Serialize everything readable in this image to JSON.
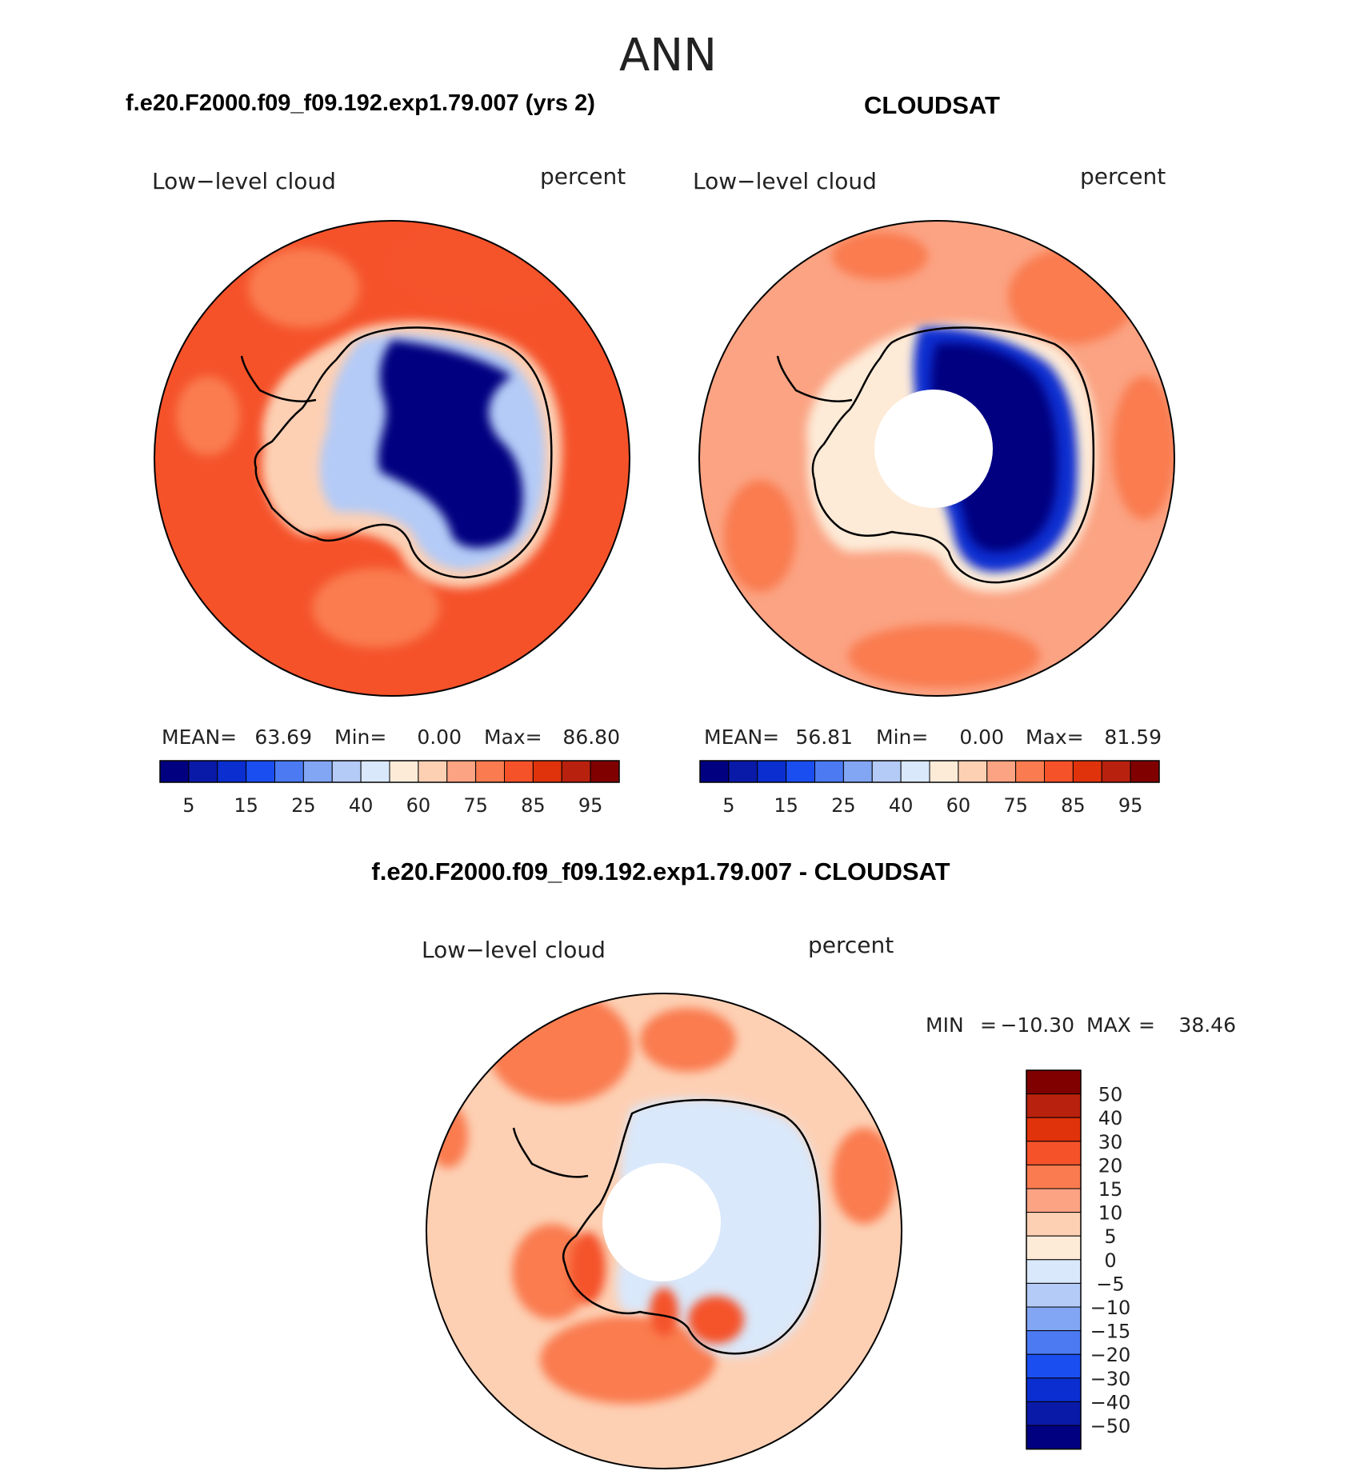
{
  "figure": {
    "title": "ANN"
  },
  "colors": {
    "model_obs_scale": [
      "#000080",
      "#0a1aa8",
      "#0a2ed0",
      "#1a4ef0",
      "#4b7af2",
      "#82a6f4",
      "#b4cbf7",
      "#d9e8fb",
      "#fdebd8",
      "#fdd0b4",
      "#fba383",
      "#fa7b4f",
      "#f5522a",
      "#e0330b",
      "#b8210e",
      "#800000"
    ],
    "diff_scale": [
      "#000080",
      "#0a1aa8",
      "#0a2ed0",
      "#1a4ef0",
      "#4b7af2",
      "#82a6f4",
      "#b4cbf7",
      "#d9e8fb",
      "#fdebd8",
      "#fdd0b4",
      "#fba383",
      "#fa7b4f",
      "#f5522a",
      "#e0330b",
      "#b8210e",
      "#800000"
    ]
  },
  "chart_data": [
    {
      "id": "model",
      "type": "heatmap",
      "projection": "south-polar-stereographic",
      "title": "f.e20.F2000.f09_f09.192.exp1.79.007 (yrs 2)",
      "variable_label": "Low−level cloud",
      "units_label": "percent",
      "stats": {
        "mean_label": "MEAN=",
        "mean": "63.69",
        "min_label": "Min=",
        "min": "0.00",
        "max_label": "Max=",
        "max": "86.80"
      },
      "colorbar": {
        "orientation": "horizontal",
        "levels": [
          5,
          10,
          15,
          20,
          25,
          30,
          40,
          50,
          60,
          70,
          75,
          80,
          85,
          90,
          95
        ],
        "tick_labels": [
          "5",
          "15",
          "25",
          "40",
          "60",
          "75",
          "85",
          "95"
        ]
      },
      "fields": {
        "ocean": 82,
        "ocean_south_band": 84,
        "continent_edge": 62,
        "interior": 3
      }
    },
    {
      "id": "obs",
      "type": "heatmap",
      "projection": "south-polar-stereographic",
      "title": "CLOUDSAT",
      "variable_label": "Low−level cloud",
      "units_label": "percent",
      "stats": {
        "mean_label": "MEAN=",
        "mean": "56.81",
        "min_label": "Min=",
        "min": "0.00",
        "max_label": "Max=",
        "max": "81.59"
      },
      "colorbar": {
        "orientation": "horizontal",
        "levels": [
          5,
          10,
          15,
          20,
          25,
          30,
          40,
          50,
          60,
          70,
          75,
          80,
          85,
          90,
          95
        ],
        "tick_labels": [
          "5",
          "15",
          "25",
          "40",
          "60",
          "75",
          "85",
          "95"
        ]
      },
      "fields": {
        "ocean": 72,
        "ocean_patches": 78,
        "continent_edge": 55,
        "interior": 3,
        "pole_missing": true
      }
    },
    {
      "id": "diff",
      "type": "heatmap",
      "projection": "south-polar-stereographic",
      "title": "f.e20.F2000.f09_f09.192.exp1.79.007 - CLOUDSAT",
      "variable_label": "Low−level cloud",
      "units_label": "percent",
      "stats": {
        "min_label": "MIN",
        "eq1": "=",
        "min": "−10.30",
        "max_label": "MAX",
        "eq2": "=",
        "max": "38.46"
      },
      "colorbar": {
        "orientation": "vertical",
        "levels": [
          -50,
          -40,
          -30,
          -20,
          -15,
          -10,
          -5,
          0,
          5,
          10,
          15,
          20,
          30,
          40,
          50
        ],
        "tick_labels": [
          "50",
          "40",
          "30",
          "20",
          "15",
          "10",
          "5",
          "0",
          "−5",
          "−10",
          "−15",
          "−20",
          "−30",
          "−40",
          "−50"
        ]
      },
      "fields": {
        "ocean": 7,
        "ocean_west": 17,
        "peninsula": 22,
        "continent": -3,
        "pole_missing": true
      }
    }
  ]
}
